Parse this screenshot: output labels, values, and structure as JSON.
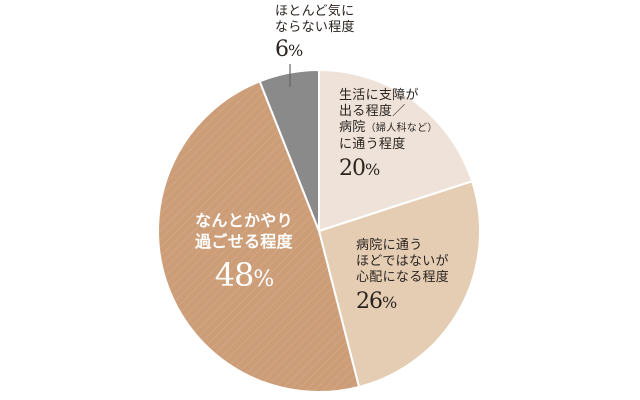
{
  "chart_data": {
    "type": "pie",
    "title": "",
    "start_angle_deg": 0,
    "direction": "clockwise",
    "slices": [
      {
        "label": "生活に支障が出る程度／病院（婦人科など）に通う程度",
        "value": 20,
        "color": "#efe3d9"
      },
      {
        "label": "病院に通うほどではないが心配になる程度",
        "value": 26,
        "color": "#e5cdb4"
      },
      {
        "label": "なんとかやり過ごせる程度",
        "value": 48,
        "color": "#cc9d77"
      },
      {
        "label": "ほとんど気にならない程度",
        "value": 6,
        "color": "#8a8a8a"
      }
    ],
    "legend": "none",
    "value_suffix": "%"
  },
  "labels": {
    "s20": {
      "lines": [
        "生活に支障が",
        "出る程度／",
        "病院",
        "（婦人科など）",
        "に通う程度"
      ],
      "value": "20",
      "unit": "%"
    },
    "s26": {
      "lines": [
        "病院に通う",
        "ほどではないが",
        "心配になる程度"
      ],
      "value": "26",
      "unit": "%"
    },
    "s48": {
      "lines": [
        "なんとかやり",
        "過ごせる程度"
      ],
      "value": "48",
      "unit": "%"
    },
    "s6": {
      "lines": [
        "ほとんど気に",
        "ならない程度"
      ],
      "value": "6",
      "unit": "%"
    }
  }
}
